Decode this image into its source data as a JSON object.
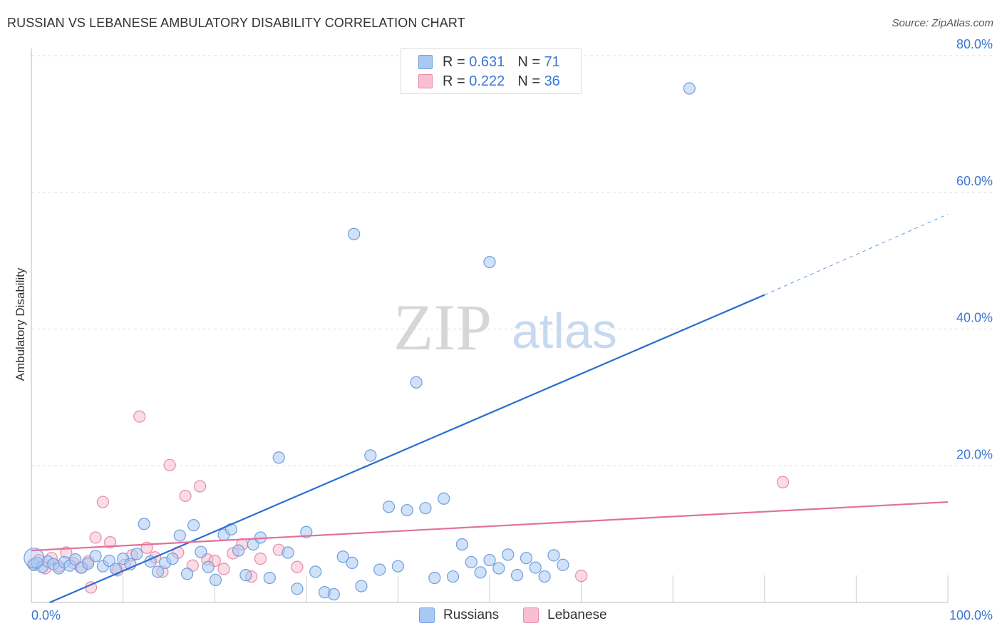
{
  "header": {
    "title": "RUSSIAN VS LEBANESE AMBULATORY DISABILITY CORRELATION CHART",
    "source": "Source: ZipAtlas.com"
  },
  "legend_top": {
    "russians": {
      "r_label": "R =",
      "r_value": "0.631",
      "n_label": "N =",
      "n_value": "71"
    },
    "lebanese": {
      "r_label": "R =",
      "r_value": "0.222",
      "n_label": "N =",
      "n_value": "36"
    }
  },
  "legend_bottom": {
    "russians": "Russians",
    "lebanese": "Lebanese"
  },
  "watermark": {
    "zip": "ZIP",
    "atlas": "atlas"
  },
  "colors": {
    "russians_fill": "#a9c9f2",
    "russians_stroke": "#6f9fdf",
    "russians_line": "#2a6fd0",
    "lebanese_fill": "#f7bfd0",
    "lebanese_stroke": "#e88aa8",
    "lebanese_line": "#e3709a",
    "axis_text": "#3b76d6",
    "grid": "#dddddd"
  },
  "chart_data": {
    "type": "scatter",
    "title": "RUSSIAN VS LEBANESE AMBULATORY DISABILITY CORRELATION CHART",
    "xlabel": "",
    "ylabel": "Ambulatory Disability",
    "xlim": [
      0,
      100
    ],
    "ylim": [
      0,
      80
    ],
    "x_ticks": [
      0,
      100
    ],
    "x_tick_labels": [
      "0.0%",
      "100.0%"
    ],
    "y_ticks": [
      20,
      40,
      60,
      80
    ],
    "y_tick_labels": [
      "20.0%",
      "40.0%",
      "60.0%",
      "80.0%"
    ],
    "grid": true,
    "series": [
      {
        "name": "Russians",
        "x": [
          0.3,
          0.6,
          1.2,
          1.8,
          2.4,
          3.0,
          3.6,
          4.2,
          4.8,
          5.5,
          6.2,
          7.0,
          7.8,
          8.5,
          9.2,
          10.0,
          10.8,
          11.5,
          12.3,
          13.0,
          13.8,
          14.6,
          15.4,
          16.2,
          17.0,
          17.7,
          18.5,
          19.3,
          20.1,
          21.0,
          21.8,
          22.6,
          23.4,
          24.2,
          25.0,
          26.0,
          27.0,
          28.0,
          29.0,
          30.0,
          31.0,
          32.0,
          33.0,
          34.0,
          35.0,
          36.0,
          37.0,
          38.0,
          39.0,
          40.0,
          41.0,
          42.0,
          43.0,
          44.0,
          45.0,
          46.0,
          47.0,
          48.0,
          49.0,
          50.0,
          51.0,
          52.0,
          53.0,
          54.0,
          55.0,
          56.0,
          57.0,
          58.0,
          35.2,
          50.0,
          71.8
        ],
        "y": [
          5.5,
          5.8,
          5.2,
          6.0,
          5.6,
          5.0,
          5.9,
          5.4,
          6.3,
          5.1,
          5.7,
          6.8,
          5.3,
          6.1,
          4.9,
          6.4,
          5.6,
          7.1,
          11.5,
          6.0,
          4.5,
          5.8,
          6.4,
          9.8,
          4.2,
          11.3,
          7.4,
          5.2,
          3.3,
          9.9,
          10.7,
          7.6,
          4.0,
          8.5,
          9.5,
          3.6,
          21.2,
          7.3,
          2.0,
          10.3,
          4.5,
          1.5,
          1.2,
          6.7,
          5.8,
          2.4,
          21.5,
          4.8,
          14.0,
          5.3,
          13.5,
          32.2,
          13.8,
          3.6,
          15.2,
          3.8,
          8.5,
          5.9,
          4.4,
          6.2,
          5.0,
          7.0,
          4.0,
          6.5,
          5.1,
          3.8,
          6.9,
          5.5,
          53.9,
          49.8,
          75.2
        ]
      },
      {
        "name": "Lebanese",
        "x": [
          0.2,
          0.8,
          1.5,
          2.2,
          3.0,
          3.8,
          4.6,
          5.4,
          6.2,
          7.0,
          7.8,
          8.6,
          9.4,
          10.2,
          11.0,
          11.8,
          12.6,
          13.5,
          14.3,
          15.1,
          16.0,
          16.8,
          17.6,
          18.4,
          19.2,
          20.0,
          21.0,
          22.0,
          23.0,
          24.0,
          25.0,
          27.0,
          29.0,
          6.5,
          60.0,
          82.0
        ],
        "y": [
          5.6,
          6.2,
          5.0,
          6.5,
          5.3,
          7.3,
          5.8,
          5.1,
          6.0,
          9.5,
          14.7,
          8.8,
          4.7,
          5.5,
          6.9,
          27.2,
          8.0,
          6.6,
          4.5,
          20.1,
          7.3,
          15.6,
          5.4,
          17.0,
          6.3,
          6.1,
          4.9,
          7.2,
          8.5,
          3.8,
          6.4,
          7.7,
          5.2,
          2.2,
          3.9,
          17.6
        ]
      }
    ],
    "trendlines": [
      {
        "series": "Russians",
        "x": [
          2,
          80
        ],
        "y": [
          0,
          45
        ],
        "dashed_extension_to_x": 100,
        "dashed_extension_y": 56.8
      },
      {
        "series": "Lebanese",
        "x": [
          0,
          100
        ],
        "y": [
          7.6,
          14.7
        ]
      }
    ]
  }
}
